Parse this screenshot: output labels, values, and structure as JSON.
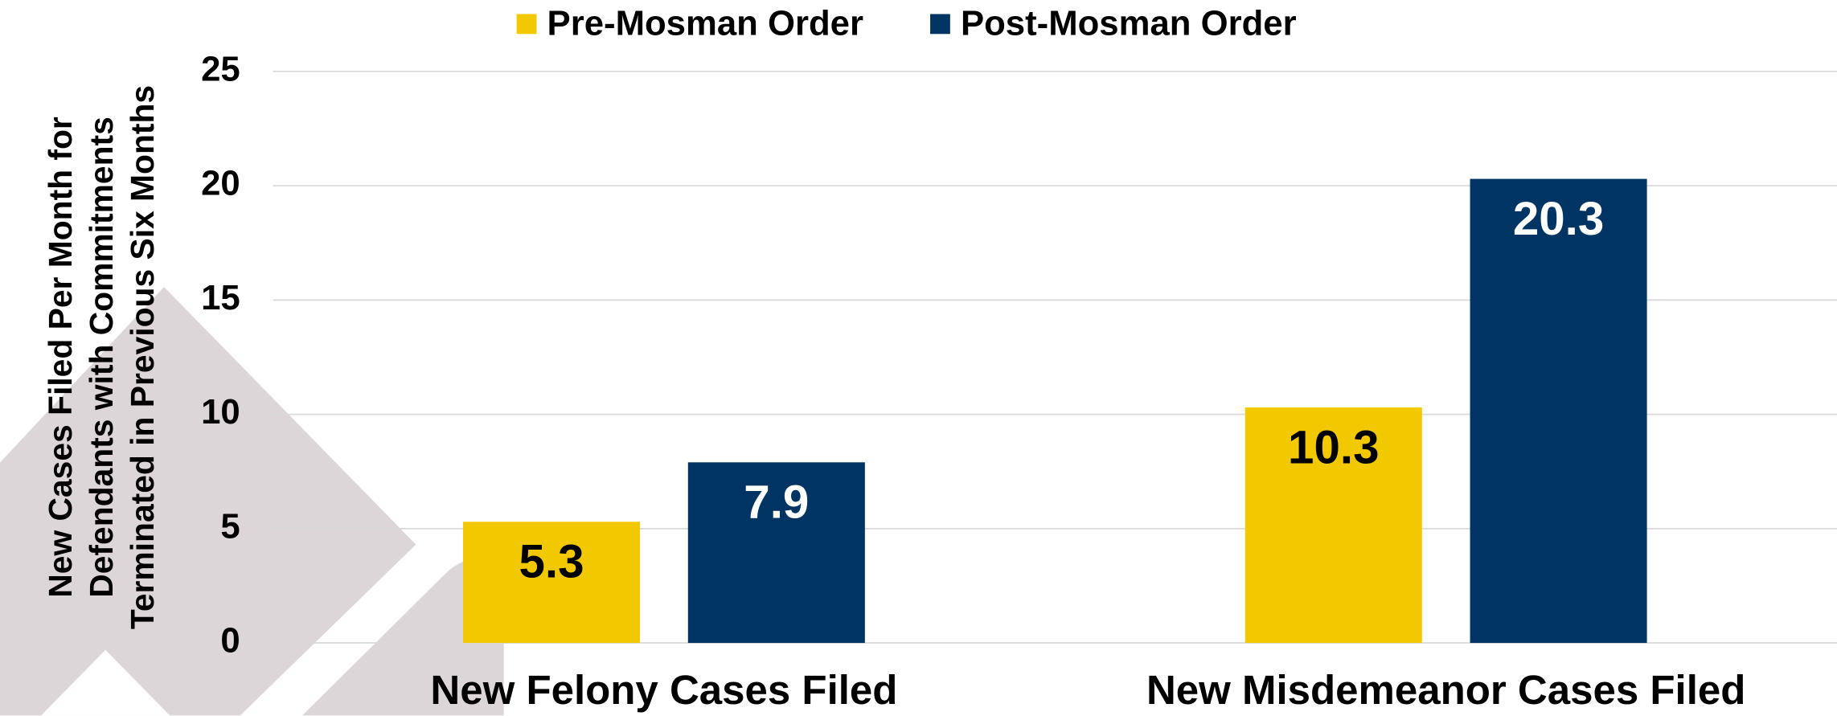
{
  "chart_data": {
    "type": "bar",
    "y_label": "New Cases Filed Per Month for Defendants with Commitments Terminated in Previous Six Months",
    "categories": [
      "New Felony Cases Filed",
      "New Misdemeanor Cases Filed"
    ],
    "series": [
      {
        "name": "Pre-Mosman Order",
        "color": "#f2c800",
        "values": [
          5.3,
          10.3
        ]
      },
      {
        "name": "Post-Mosman Order",
        "color": "#003462",
        "values": [
          7.9,
          20.3
        ]
      }
    ],
    "ylim": [
      0,
      25
    ],
    "yticks": [
      0,
      5,
      10,
      15,
      20,
      25
    ],
    "grid": true,
    "legend": "top"
  }
}
